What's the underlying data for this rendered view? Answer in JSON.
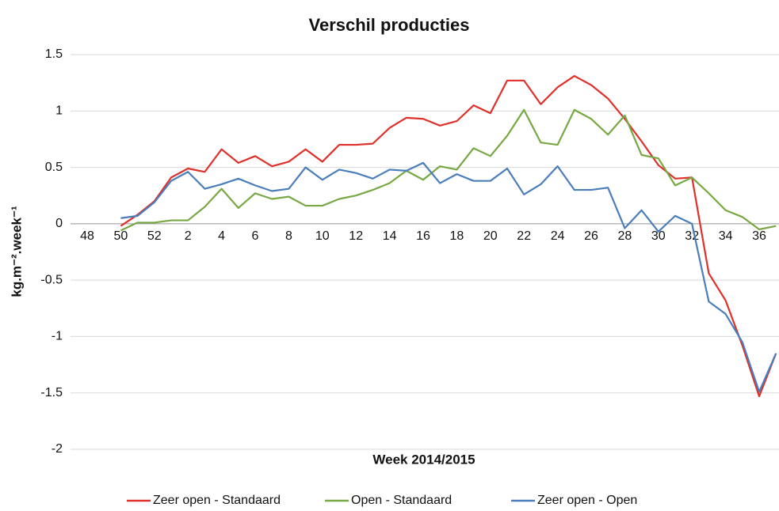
{
  "chart_data": {
    "type": "line",
    "title": "Verschil producties",
    "x_label": "Week 2014/2015",
    "y_label": "kg.m⁻².week⁻¹",
    "categories": [
      "48",
      null,
      "50",
      null,
      "52",
      null,
      "2",
      null,
      "4",
      null,
      "6",
      null,
      "8",
      null,
      "10",
      null,
      "12",
      null,
      "14",
      null,
      "16",
      null,
      "18",
      null,
      "20",
      null,
      "22",
      null,
      "24",
      null,
      "26",
      null,
      "28",
      null,
      "30",
      null,
      "32",
      null,
      "34",
      null,
      "36",
      null
    ],
    "series": [
      {
        "name": "Zeer open - Standaard",
        "color": "#e0302a",
        "values": [
          null,
          null,
          -0.02,
          0.08,
          0.2,
          0.41,
          0.49,
          0.46,
          0.66,
          0.54,
          0.6,
          0.51,
          0.55,
          0.66,
          0.55,
          0.7,
          0.7,
          0.71,
          0.85,
          0.94,
          0.93,
          0.87,
          0.91,
          1.05,
          0.98,
          1.27,
          1.27,
          1.06,
          1.21,
          1.31,
          1.23,
          1.11,
          0.93,
          0.73,
          0.52,
          0.4,
          0.41,
          -0.44,
          -0.68,
          -1.08,
          -1.53,
          -1.15
        ]
      },
      {
        "name": "Open - Standaard",
        "color": "#77a843",
        "values": [
          null,
          null,
          -0.06,
          0.01,
          0.01,
          0.03,
          0.03,
          0.15,
          0.31,
          0.14,
          0.27,
          0.22,
          0.24,
          0.16,
          0.16,
          0.22,
          0.25,
          0.3,
          0.36,
          0.47,
          0.39,
          0.51,
          0.48,
          0.67,
          0.6,
          0.78,
          1.01,
          0.72,
          0.7,
          1.01,
          0.93,
          0.79,
          0.96,
          0.61,
          0.58,
          0.34,
          0.41,
          0.27,
          0.12,
          0.06,
          -0.05,
          -0.02
        ]
      },
      {
        "name": "Zeer open - Open",
        "color": "#4a7ebb",
        "values": [
          null,
          null,
          0.05,
          0.07,
          0.19,
          0.38,
          0.46,
          0.31,
          0.35,
          0.4,
          0.34,
          0.29,
          0.31,
          0.5,
          0.39,
          0.48,
          0.45,
          0.4,
          0.48,
          0.47,
          0.54,
          0.36,
          0.44,
          0.38,
          0.38,
          0.49,
          0.26,
          0.35,
          0.51,
          0.3,
          0.3,
          0.32,
          -0.04,
          0.12,
          -0.07,
          0.07,
          0.0,
          -0.69,
          -0.8,
          -1.05,
          -1.49,
          -1.15
        ]
      }
    ],
    "ylim": [
      -2,
      1.5
    ],
    "yticks": [
      -2,
      -1.5,
      -1,
      -0.5,
      0,
      0.5,
      1,
      1.5
    ],
    "grid": true,
    "legend": "bottom"
  }
}
